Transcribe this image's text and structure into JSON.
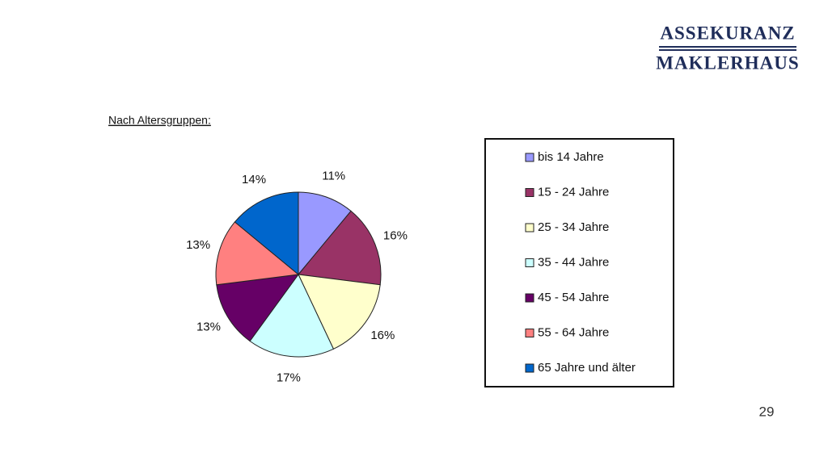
{
  "logo": {
    "line1": "ASSEKURANZ",
    "line2": "MAKLERHAUS"
  },
  "page_number": "29",
  "chart_data": {
    "type": "pie",
    "title": "Nach Altersgruppen:",
    "categories": [
      "bis 14 Jahre",
      "15 - 24 Jahre",
      "25 - 34 Jahre",
      "35 - 44 Jahre",
      "45 - 54 Jahre",
      "55 - 64 Jahre",
      "65 Jahre und älter"
    ],
    "values": [
      11,
      16,
      16,
      17,
      13,
      13,
      14
    ],
    "value_labels": [
      "11%",
      "16%",
      "16%",
      "17%",
      "13%",
      "13%",
      "14%"
    ],
    "colors": [
      "#9999ff",
      "#993366",
      "#ffffcc",
      "#ccffff",
      "#660066",
      "#ff8080",
      "#0066cc"
    ]
  }
}
